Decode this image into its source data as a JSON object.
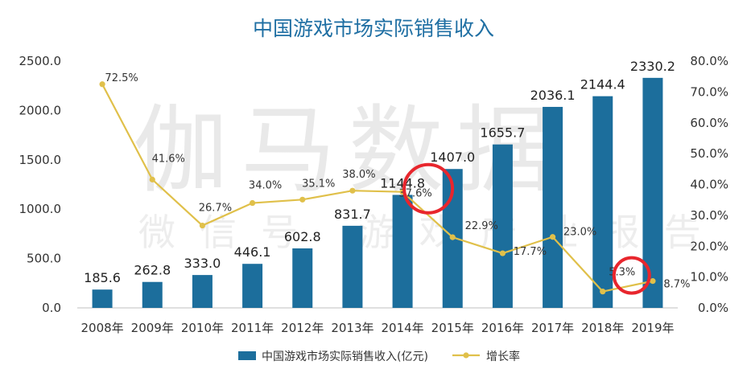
{
  "title": "中国游戏市场实际销售收入",
  "watermark": {
    "main": "伽马数据",
    "sub": "微信号 游戏产业报告"
  },
  "colors": {
    "bar": "#1c6e9c",
    "line": "#e0c04a",
    "title": "#1f6fa3",
    "highlight": "#e8262d"
  },
  "chart_data": {
    "type": "bar",
    "categories": [
      "2008年",
      "2009年",
      "2010年",
      "2011年",
      "2012年",
      "2013年",
      "2014年",
      "2015年",
      "2016年",
      "2017年",
      "2018年",
      "2019年"
    ],
    "series": [
      {
        "name": "中国游戏市场实际销售收入(亿元)",
        "type": "bar",
        "axis": "left",
        "values": [
          185.6,
          262.8,
          333.0,
          446.1,
          602.8,
          831.7,
          1144.8,
          1407.0,
          1655.7,
          2036.1,
          2144.4,
          2330.2
        ],
        "labels": [
          "185.6",
          "262.8",
          "333.0",
          "446.1",
          "602.8",
          "831.7",
          "1144.8",
          "1407.0",
          "1655.7",
          "2036.1",
          "2144.4",
          "2330.2"
        ]
      },
      {
        "name": "增长率",
        "type": "line",
        "axis": "right",
        "values": [
          72.5,
          41.6,
          26.7,
          34.0,
          35.1,
          38.0,
          37.6,
          22.9,
          17.7,
          23.0,
          5.3,
          8.7
        ],
        "labels": [
          "72.5%",
          "41.6%",
          "26.7%",
          "34.0%",
          "35.1%",
          "38.0%",
          "37.6%",
          "22.9%",
          "17.7%",
          "23.0%",
          "5.3%",
          "8.7%"
        ]
      }
    ],
    "y_left": {
      "range": [
        0,
        2500
      ],
      "ticks": [
        "0.0",
        "500.0",
        "1000.0",
        "1500.0",
        "2000.0",
        "2500.0"
      ]
    },
    "y_right": {
      "range": [
        0,
        80
      ],
      "ticks": [
        "0.0%",
        "10.0%",
        "20.0%",
        "30.0%",
        "40.0%",
        "50.0%",
        "60.0%",
        "70.0%",
        "80.0%"
      ]
    },
    "grid": false,
    "legend_position": "bottom",
    "highlighted_points": [
      "2014年",
      "2018年"
    ]
  }
}
